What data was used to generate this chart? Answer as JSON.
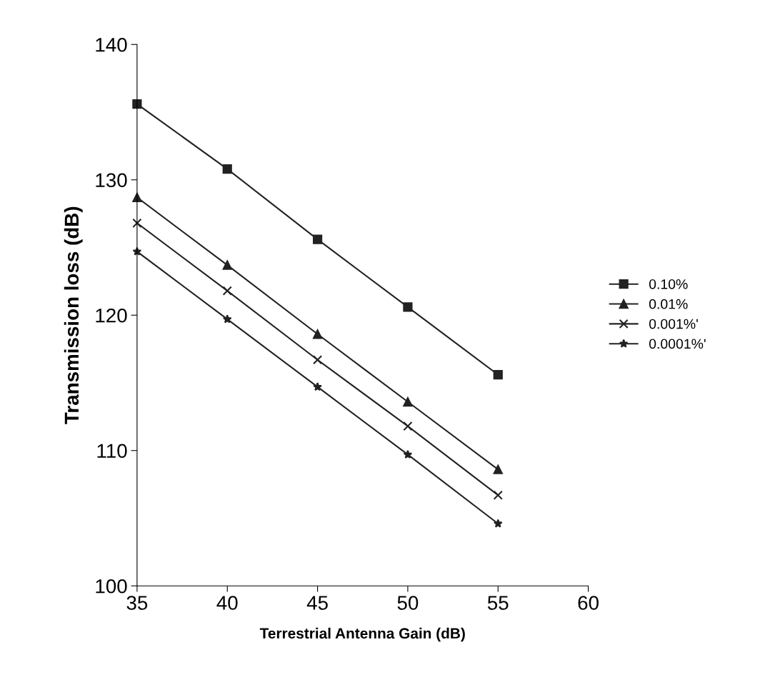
{
  "chart_data": {
    "type": "line",
    "xlabel": "Terrestrial Antenna Gain (dB)",
    "ylabel": "Transmission loss (dB)",
    "x": [
      35,
      40,
      45,
      50,
      55
    ],
    "series": [
      {
        "name": "0.10%",
        "color": "#222222",
        "marker": "square",
        "values": [
          135.6,
          130.8,
          125.6,
          120.6,
          115.6
        ]
      },
      {
        "name": "0.01%",
        "color": "#222222",
        "marker": "triangle",
        "values": [
          128.7,
          123.7,
          118.6,
          113.6,
          108.6
        ]
      },
      {
        "name": "0.001%'",
        "color": "#222222",
        "marker": "cross",
        "values": [
          126.8,
          121.8,
          116.7,
          111.8,
          106.7
        ]
      },
      {
        "name": "0.0001%'",
        "color": "#222222",
        "marker": "star",
        "values": [
          124.7,
          119.7,
          114.7,
          109.7,
          104.6
        ]
      }
    ],
    "xlim": [
      35,
      60
    ],
    "xticks": [
      35,
      40,
      45,
      50,
      55,
      60
    ],
    "ylim": [
      100,
      140
    ],
    "yticks": [
      100,
      110,
      120,
      130,
      140
    ],
    "grid": false,
    "legend": "right",
    "line_style": "solid"
  }
}
